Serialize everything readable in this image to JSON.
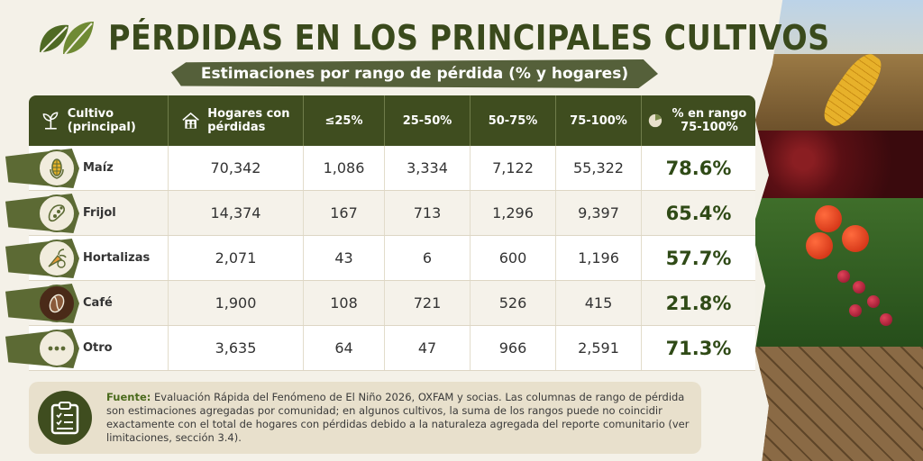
{
  "header": {
    "title": "PÉRDIDAS EN LOS PRINCIPALES CULTIVOS",
    "subtitle": "Estimaciones por rango de pérdida (% y hogares)"
  },
  "table": {
    "headers": {
      "crop": "Cultivo (principal)",
      "households": "Hogares con pérdidas",
      "r1": "≤25%",
      "r2": "25-50%",
      "r3": "50-75%",
      "r4": "75-100%",
      "pct": "% en rango 75-100%"
    },
    "rows": [
      {
        "crop": "Maíz",
        "households": "70,342",
        "r1": "1,086",
        "r2": "3,334",
        "r3": "7,122",
        "r4": "55,322",
        "pct": "78.6%",
        "icon": "corn-icon"
      },
      {
        "crop": "Frijol",
        "households": "14,374",
        "r1": "167",
        "r2": "713",
        "r3": "1,296",
        "r4": "9,397",
        "pct": "65.4%",
        "icon": "bean-icon"
      },
      {
        "crop": "Hortalizas",
        "households": "2,071",
        "r1": "43",
        "r2": "6",
        "r3": "600",
        "r4": "1,196",
        "pct": "57.7%",
        "icon": "vegetable-icon"
      },
      {
        "crop": "Café",
        "households": "1,900",
        "r1": "108",
        "r2": "721",
        "r3": "526",
        "r4": "415",
        "pct": "21.8%",
        "icon": "coffee-bean-icon"
      },
      {
        "crop": "Otro",
        "households": "3,635",
        "r1": "64",
        "r2": "47",
        "r3": "966",
        "r4": "2,591",
        "pct": "71.3%",
        "icon": "more-icon"
      }
    ]
  },
  "source": {
    "label": "Fuente:",
    "text": " Evaluación Rápida del Fenómeno de El Niño 2026, OXFAM y socias. Las columnas de rango de pérdida son estimaciones agregadas por comunidad; en algunos cultivos, la suma de los rangos puede no coincidir exactamente con el total de hogares con pérdidas debido a la naturaleza agregada del reporte comunitario (ver limitaciones, sección 3.4)."
  },
  "colors": {
    "primary": "#3f4d1f",
    "accent": "#5c6a34",
    "background": "#f4f1e8"
  }
}
